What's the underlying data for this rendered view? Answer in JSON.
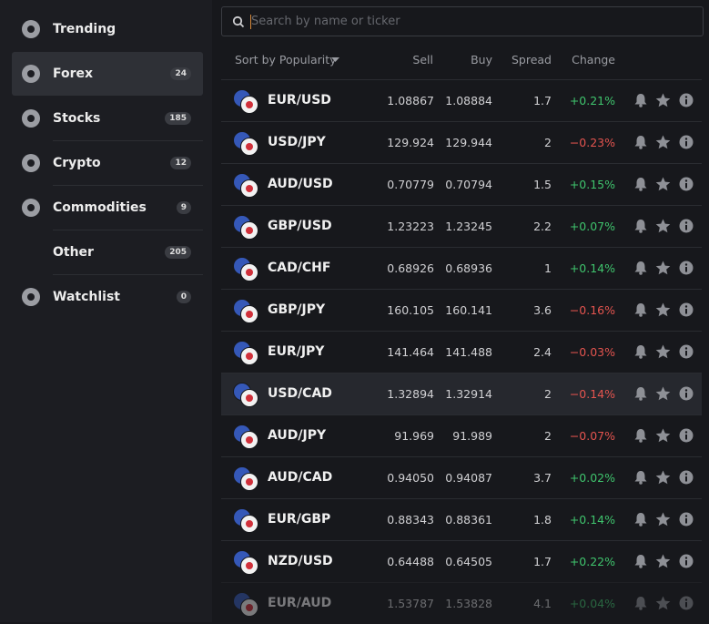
{
  "sidebar": {
    "items": [
      {
        "label": "Trending"
      },
      {
        "label": "Forex",
        "count": 24
      },
      {
        "label": "Stocks",
        "count": 185
      },
      {
        "label": "Crypto",
        "count": 12
      },
      {
        "label": "Commodities",
        "count": 9
      },
      {
        "label": "Other",
        "count": 205
      },
      {
        "label": "Watchlist",
        "count": 0
      }
    ]
  },
  "search": {
    "placeholder": "Search by name or ticker"
  },
  "table": {
    "headers": [
      "Sort by Popularity",
      "Sell",
      "Buy",
      "Spread",
      "Change"
    ],
    "rows": [
      {
        "pair": "EUR/USD",
        "sell": "1.08867",
        "buy": "1.08884",
        "spread": "1.7",
        "change": "+0.21%"
      },
      {
        "pair": "USD/JPY",
        "sell": "129.924",
        "buy": "129.944",
        "spread": "2",
        "change": "−0.23%"
      },
      {
        "pair": "AUD/USD",
        "sell": "0.70779",
        "buy": "0.70794",
        "spread": "1.5",
        "change": "+0.15%"
      },
      {
        "pair": "GBP/USD",
        "sell": "1.23223",
        "buy": "1.23245",
        "spread": "2.2",
        "change": "+0.07%"
      },
      {
        "pair": "CAD/CHF",
        "sell": "0.68926",
        "buy": "0.68936",
        "spread": "1",
        "change": "+0.14%"
      },
      {
        "pair": "GBP/JPY",
        "sell": "160.105",
        "buy": "160.141",
        "spread": "3.6",
        "change": "−0.16%"
      },
      {
        "pair": "EUR/JPY",
        "sell": "141.464",
        "buy": "141.488",
        "spread": "2.4",
        "change": "−0.03%"
      },
      {
        "pair": "USD/CAD",
        "sell": "1.32894",
        "buy": "1.32914",
        "spread": "2",
        "change": "−0.14%"
      },
      {
        "pair": "AUD/JPY",
        "sell": "91.969",
        "buy": "91.989",
        "spread": "2",
        "change": "−0.07%"
      },
      {
        "pair": "AUD/CAD",
        "sell": "0.94050",
        "buy": "0.94087",
        "spread": "3.7",
        "change": "+0.02%"
      },
      {
        "pair": "EUR/GBP",
        "sell": "0.88343",
        "buy": "0.88361",
        "spread": "1.8",
        "change": "+0.14%"
      },
      {
        "pair": "NZD/USD",
        "sell": "0.64488",
        "buy": "0.64505",
        "spread": "1.7",
        "change": "+0.22%"
      },
      {
        "pair": "EUR/AUD",
        "sell": "1.53787",
        "buy": "1.53828",
        "spread": "4.1",
        "change": "+0.04%"
      }
    ]
  }
}
